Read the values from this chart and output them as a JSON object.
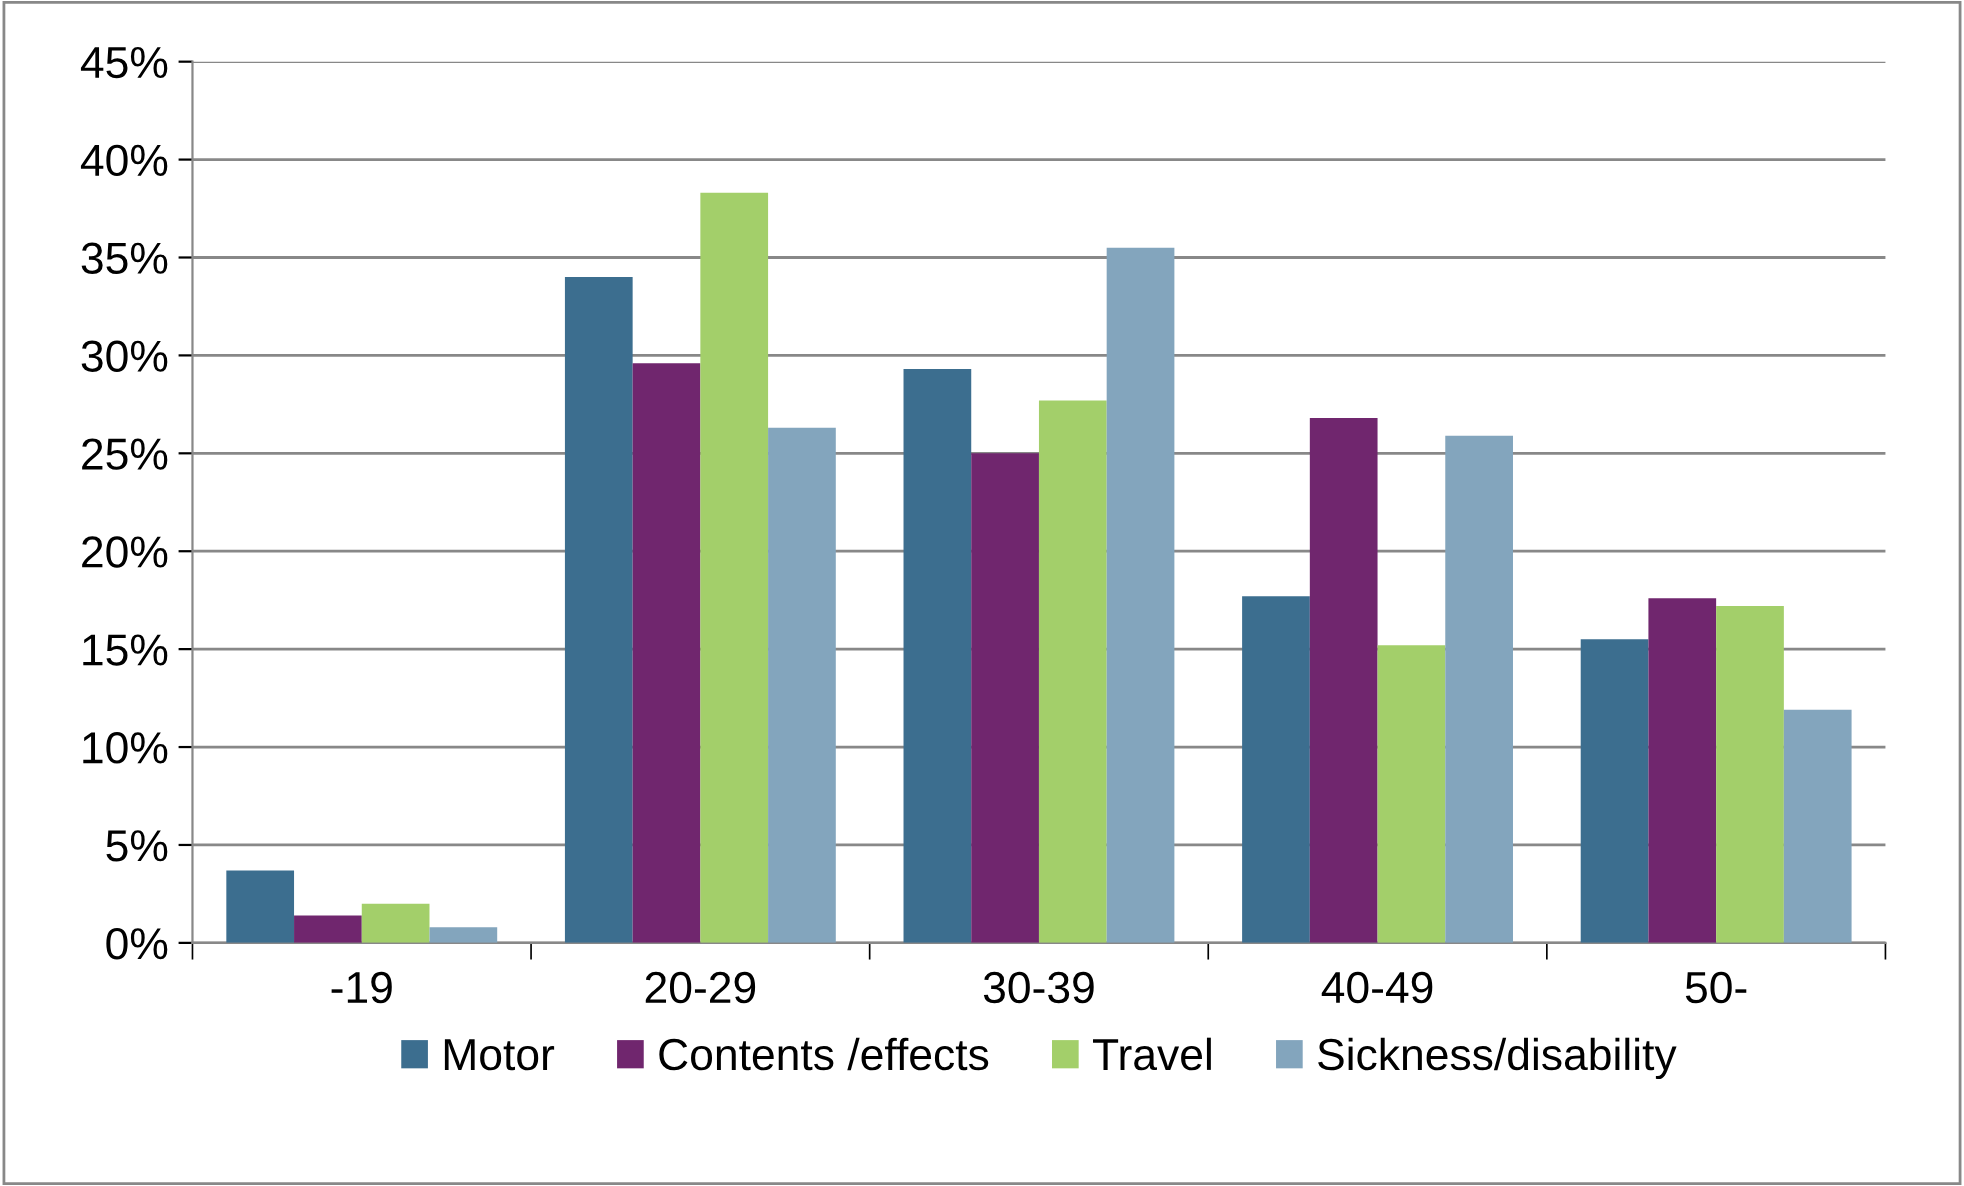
{
  "chart_data": {
    "type": "bar",
    "categories": [
      "-19",
      "20-29",
      "30-39",
      "40-49",
      "50-"
    ],
    "series": [
      {
        "name": "Motor",
        "color": "#3c6e8f",
        "values": [
          3.7,
          34.0,
          29.3,
          17.7,
          15.5
        ]
      },
      {
        "name": "Contents /effects",
        "color": "#70266e",
        "values": [
          1.4,
          29.6,
          25.0,
          26.8,
          17.6
        ]
      },
      {
        "name": "Travel",
        "color": "#a3cf6a",
        "values": [
          2.0,
          38.3,
          27.7,
          15.2,
          17.2
        ]
      },
      {
        "name": "Sickness/disability",
        "color": "#83a5bd",
        "values": [
          0.8,
          26.3,
          35.5,
          25.9,
          11.9
        ]
      }
    ],
    "ylim": [
      0,
      45
    ],
    "yticks": [
      {
        "value": 0,
        "label": "0%"
      },
      {
        "value": 5,
        "label": "5%"
      },
      {
        "value": 10,
        "label": "10%"
      },
      {
        "value": 15,
        "label": "15%"
      },
      {
        "value": 20,
        "label": "20%"
      },
      {
        "value": 25,
        "label": "25%"
      },
      {
        "value": 30,
        "label": "30%"
      },
      {
        "value": 35,
        "label": "35%"
      },
      {
        "value": 40,
        "label": "40%"
      },
      {
        "value": 45,
        "label": "45%"
      }
    ],
    "grid": "y",
    "legend": "bottom"
  }
}
